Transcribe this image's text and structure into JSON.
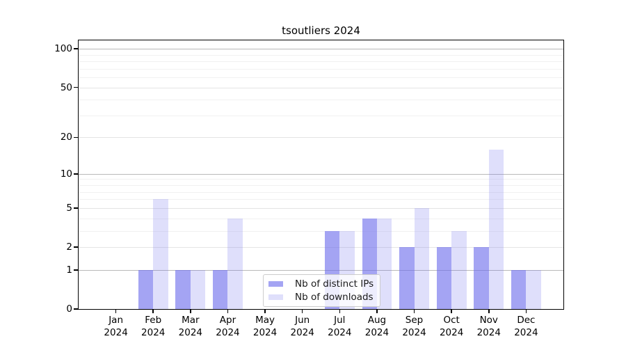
{
  "chart_data": {
    "type": "bar",
    "title": "tsoutliers 2024",
    "xlabel": "",
    "ylabel": "",
    "yscale": "log1p",
    "ylim": [
      0,
      116
    ],
    "grid": "on",
    "categories": [
      "Jan 2024",
      "Feb 2024",
      "Mar 2024",
      "Apr 2024",
      "May 2024",
      "Jun 2024",
      "Jul 2024",
      "Aug 2024",
      "Sep 2024",
      "Oct 2024",
      "Nov 2024",
      "Dec 2024"
    ],
    "series": [
      {
        "name": "Nb of distinct IPs",
        "values": [
          0,
          1,
          1,
          1,
          0,
          0,
          3,
          4,
          2,
          2,
          2,
          1
        ],
        "color": "rgba(108,108,236,0.62)"
      },
      {
        "name": "Nb of downloads",
        "values": [
          0,
          6,
          1,
          4,
          0,
          0,
          3,
          4,
          5,
          3,
          16,
          1
        ],
        "color": "rgba(108,108,236,0.22)"
      }
    ],
    "ytick_values": [
      0,
      1,
      2,
      5,
      10,
      20,
      50,
      100
    ],
    "gridlines": {
      "major": {
        "values": [
          1,
          10,
          100
        ],
        "color": "#b9b9b9"
      },
      "mid": {
        "values": [
          2,
          5,
          20,
          50
        ],
        "color": "#e4e4e4"
      },
      "minor": {
        "values": [
          3,
          4,
          6,
          7,
          8,
          9,
          30,
          40,
          60,
          70,
          80,
          90
        ],
        "color": "#f1f1f1"
      }
    },
    "legend_position": "lower center",
    "colors": {
      "axis": "#000000",
      "text": "#000000",
      "background": "#ffffff",
      "legend_border": "#cccccc"
    }
  }
}
